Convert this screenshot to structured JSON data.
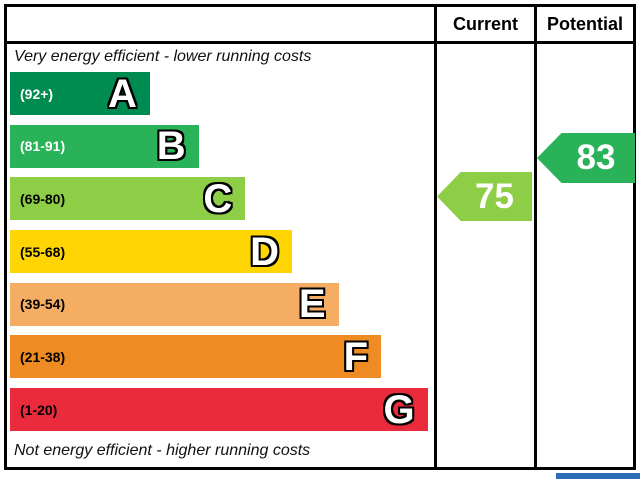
{
  "header": {
    "current_label": "Current",
    "potential_label": "Potential"
  },
  "scale": {
    "top_note": "Very energy efficient - lower running costs",
    "bottom_note": "Not energy efficient - higher running costs"
  },
  "bands": [
    {
      "letter": "A",
      "range_label": "(92+)",
      "color": "#008c50",
      "label_color": "#ffffff",
      "width_pct": 33
    },
    {
      "letter": "B",
      "range_label": "(81-91)",
      "color": "#2ab259",
      "label_color": "#ffffff",
      "width_pct": 44.5
    },
    {
      "letter": "C",
      "range_label": "(69-80)",
      "color": "#8dce46",
      "label_color": "#000000",
      "width_pct": 55.5
    },
    {
      "letter": "D",
      "range_label": "(55-68)",
      "color": "#fed502",
      "label_color": "#000000",
      "width_pct": 66.5
    },
    {
      "letter": "E",
      "range_label": "(39-54)",
      "color": "#f5ad63",
      "label_color": "#000000",
      "width_pct": 77.5
    },
    {
      "letter": "F",
      "range_label": "(21-38)",
      "color": "#ef8b23",
      "label_color": "#000000",
      "width_pct": 87.5
    },
    {
      "letter": "G",
      "range_label": "(1-20)",
      "color": "#ea2b3c",
      "label_color": "#000000",
      "width_pct": 98.5
    }
  ],
  "current": {
    "value": "75",
    "band": "C",
    "color": "#8dce46"
  },
  "potential": {
    "value": "83",
    "band": "B",
    "color": "#2ab259"
  },
  "partial_next_element_color": "#2e6db6",
  "chart_data": {
    "type": "bar",
    "title": "",
    "categories": [
      "A",
      "B",
      "C",
      "D",
      "E",
      "F",
      "G"
    ],
    "band_ranges": [
      "92+",
      "81-91",
      "69-80",
      "55-68",
      "39-54",
      "21-38",
      "1-20"
    ],
    "band_colors": [
      "#008c50",
      "#2ab259",
      "#8dce46",
      "#fed502",
      "#f5ad63",
      "#ef8b23",
      "#ea2b3c"
    ],
    "bar_lengths_pct": [
      33,
      44.5,
      55.5,
      66.5,
      77.5,
      87.5,
      98.5
    ],
    "value_range": [
      1,
      100
    ],
    "annotations": [
      "Very energy efficient - lower running costs",
      "Not energy efficient - higher running costs"
    ],
    "markers": [
      {
        "name": "Current",
        "value": 75,
        "band": "C"
      },
      {
        "name": "Potential",
        "value": 83,
        "band": "B"
      }
    ]
  }
}
